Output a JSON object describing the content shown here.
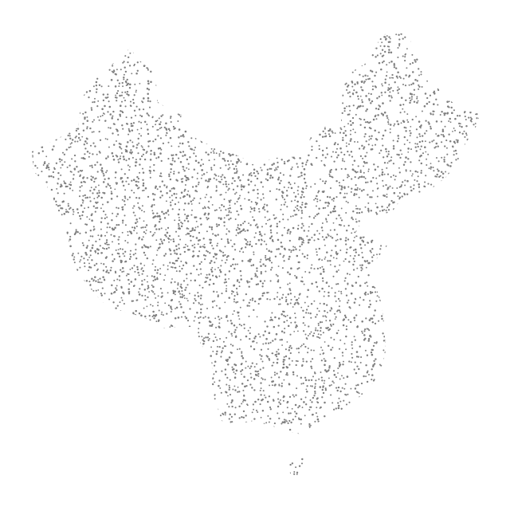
{
  "map": {
    "style": "dot-density",
    "region_depicted": "China",
    "dot_color": "#7f7f7f",
    "background_color": "#ffffff",
    "labels": []
  }
}
